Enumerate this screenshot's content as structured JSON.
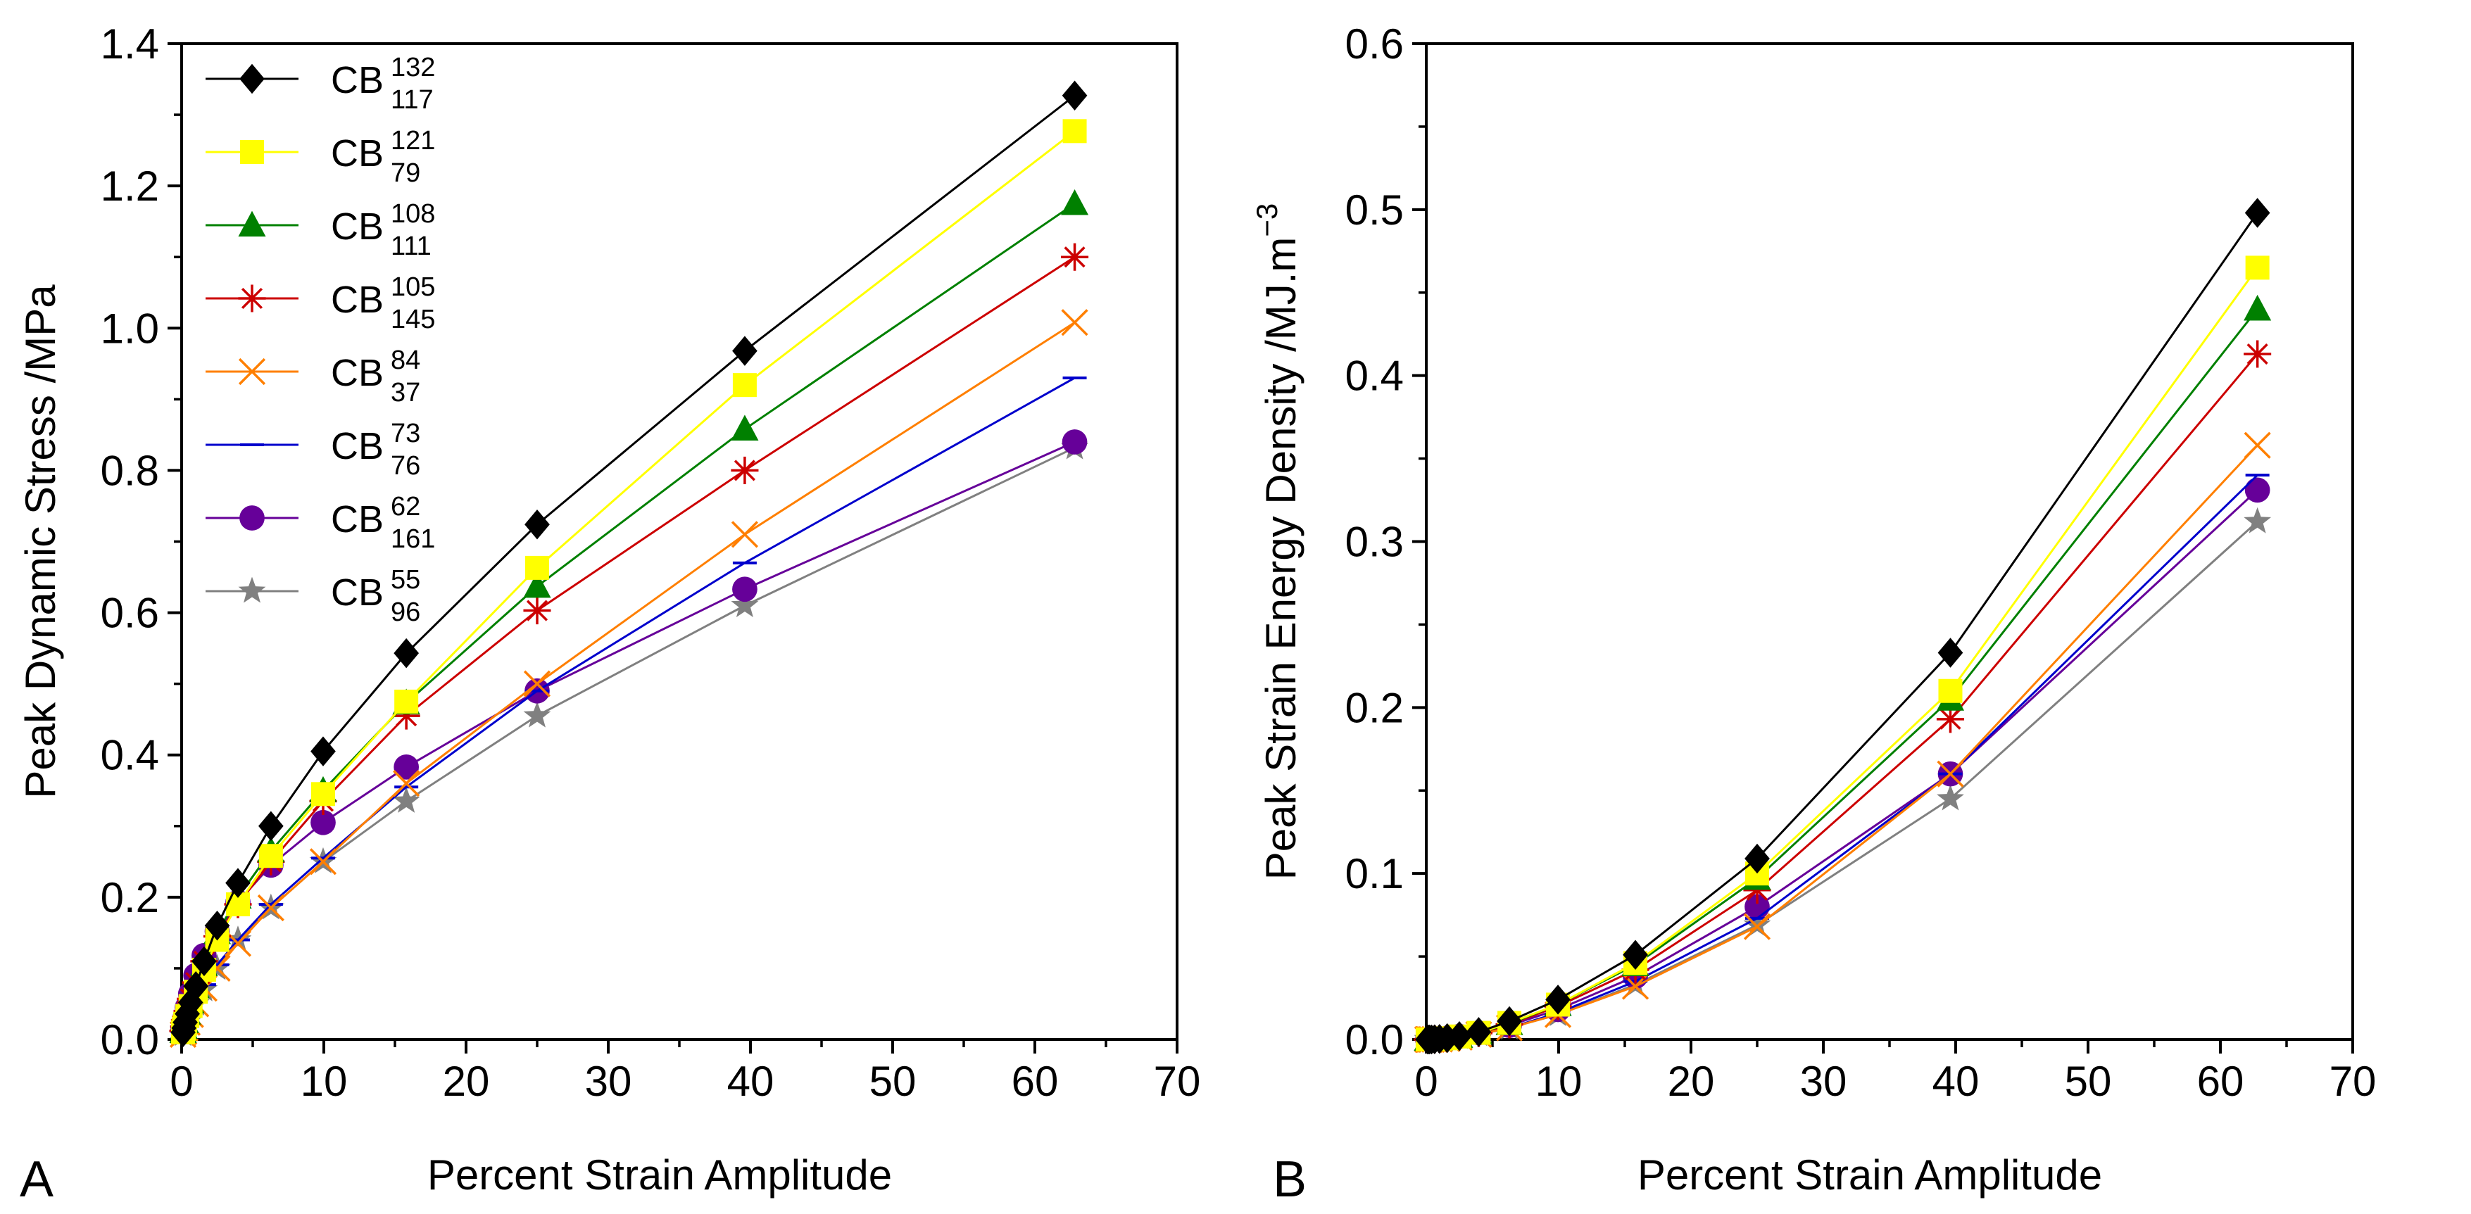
{
  "figure": {
    "legend_series": [
      {
        "base": "CB",
        "sup": "132",
        "sub": "117",
        "color": "#000000",
        "marker": "diamond"
      },
      {
        "base": "CB",
        "sup": "121",
        "sub": "79",
        "color": "#FFFF00",
        "marker": "square"
      },
      {
        "base": "CB",
        "sup": "108",
        "sub": "111",
        "color": "#008000",
        "marker": "triangle"
      },
      {
        "base": "CB",
        "sup": "105",
        "sub": "145",
        "color": "#CC0000",
        "marker": "asterisk"
      },
      {
        "base": "CB",
        "sup": "84",
        "sub": "37",
        "color": "#FF7F00",
        "marker": "cross"
      },
      {
        "base": "CB",
        "sup": "73",
        "sub": "76",
        "color": "#0000CC",
        "marker": "dash"
      },
      {
        "base": "CB",
        "sup": "62",
        "sub": "161",
        "color": "#660099",
        "marker": "circle"
      },
      {
        "base": "CB",
        "sup": "55",
        "sub": "96",
        "color": "#808080",
        "marker": "star"
      }
    ]
  },
  "chart_data": [
    {
      "type": "line",
      "panel_label": "A",
      "title": "",
      "xlabel": "Percent Strain Amplitude",
      "ylabel": "Peak Dynamic Stress /MPa",
      "xlim": [
        0,
        70
      ],
      "ylim": [
        0,
        1.4
      ],
      "xticks": [
        0,
        10,
        20,
        30,
        40,
        50,
        60,
        70
      ],
      "yticks": [
        0.0,
        0.2,
        0.4,
        0.6,
        0.8,
        1.0,
        1.2,
        1.4
      ],
      "ytick_decimals": 1,
      "legend_position": "top-left",
      "x": [
        0.1,
        0.16,
        0.25,
        0.4,
        0.63,
        1.0,
        1.58,
        2.5,
        3.96,
        6.28,
        9.95,
        15.8,
        25.0,
        39.6,
        62.8
      ],
      "series": [
        {
          "name": "CB 132/117",
          "values": [
            0.01,
            0.016,
            0.024,
            0.036,
            0.052,
            0.075,
            0.11,
            0.16,
            0.22,
            0.3,
            0.405,
            0.543,
            0.724,
            0.968,
            1.327
          ]
        },
        {
          "name": "CB 121/79",
          "values": [
            0.01,
            0.015,
            0.022,
            0.033,
            0.047,
            0.067,
            0.098,
            0.14,
            0.19,
            0.258,
            0.345,
            0.475,
            0.663,
            0.92,
            1.277
          ]
        },
        {
          "name": "CB 108/111",
          "values": [
            0.011,
            0.017,
            0.025,
            0.037,
            0.053,
            0.074,
            0.105,
            0.15,
            0.2,
            0.265,
            0.35,
            0.473,
            0.637,
            0.858,
            1.175
          ]
        },
        {
          "name": "CB 105/145",
          "values": [
            0.012,
            0.018,
            0.027,
            0.04,
            0.057,
            0.08,
            0.11,
            0.145,
            0.19,
            0.25,
            0.335,
            0.455,
            0.603,
            0.8,
            1.1
          ]
        },
        {
          "name": "CB 84/37",
          "values": [
            0.007,
            0.011,
            0.016,
            0.024,
            0.035,
            0.05,
            0.072,
            0.1,
            0.135,
            0.185,
            0.25,
            0.36,
            0.5,
            0.71,
            1.008
          ]
        },
        {
          "name": "CB 73/76",
          "values": [
            0.008,
            0.012,
            0.018,
            0.027,
            0.039,
            0.055,
            0.077,
            0.105,
            0.14,
            0.19,
            0.255,
            0.355,
            0.49,
            0.67,
            0.93
          ]
        },
        {
          "name": "CB 62/161",
          "values": [
            0.014,
            0.021,
            0.031,
            0.045,
            0.064,
            0.09,
            0.118,
            0.152,
            0.193,
            0.245,
            0.305,
            0.383,
            0.49,
            0.633,
            0.84
          ]
        },
        {
          "name": "CB 55/96",
          "values": [
            0.007,
            0.011,
            0.016,
            0.024,
            0.035,
            0.05,
            0.07,
            0.1,
            0.14,
            0.185,
            0.25,
            0.335,
            0.455,
            0.61,
            0.832
          ]
        }
      ]
    },
    {
      "type": "line",
      "panel_label": "B",
      "title": "",
      "xlabel": "Percent Strain Amplitude",
      "ylabel": "Peak Strain Energy Density /MJ.m",
      "ylabel_superscript": "−3",
      "xlim": [
        0,
        70
      ],
      "ylim": [
        0,
        0.6
      ],
      "xticks": [
        0,
        10,
        20,
        30,
        40,
        50,
        60,
        70
      ],
      "yticks": [
        0.0,
        0.1,
        0.2,
        0.3,
        0.4,
        0.5,
        0.6
      ],
      "ytick_decimals": 1,
      "legend_position": "none",
      "x": [
        0.1,
        0.16,
        0.25,
        0.4,
        0.63,
        1.0,
        1.58,
        2.5,
        3.96,
        6.28,
        9.95,
        15.8,
        25.0,
        39.6,
        62.8
      ],
      "series": [
        {
          "name": "CB 132/117",
          "values": [
            0.0,
            0.0,
            0.0,
            0.0,
            0.0001,
            0.0003,
            0.0008,
            0.002,
            0.0045,
            0.011,
            0.024,
            0.051,
            0.109,
            0.233,
            0.498
          ]
        },
        {
          "name": "CB 121/79",
          "values": [
            0.0,
            0.0,
            0.0,
            0.0,
            0.0001,
            0.0003,
            0.0007,
            0.0018,
            0.004,
            0.01,
            0.021,
            0.046,
            0.1,
            0.21,
            0.465
          ]
        },
        {
          "name": "CB 108/111",
          "values": [
            0.0,
            0.0,
            0.0,
            0.0,
            0.0001,
            0.0003,
            0.0007,
            0.0018,
            0.004,
            0.0095,
            0.021,
            0.045,
            0.097,
            0.205,
            0.44
          ]
        },
        {
          "name": "CB 105/145",
          "values": [
            0.0,
            0.0,
            0.0,
            0.0,
            0.0001,
            0.0003,
            0.0007,
            0.0018,
            0.0038,
            0.009,
            0.02,
            0.042,
            0.09,
            0.193,
            0.413
          ]
        },
        {
          "name": "CB 84/37",
          "values": [
            0.0,
            0.0,
            0.0,
            0.0,
            0.0001,
            0.0002,
            0.0005,
            0.0013,
            0.003,
            0.007,
            0.015,
            0.032,
            0.068,
            0.16,
            0.358
          ]
        },
        {
          "name": "CB 73/76",
          "values": [
            0.0,
            0.0,
            0.0,
            0.0,
            0.0001,
            0.0002,
            0.0005,
            0.0013,
            0.003,
            0.007,
            0.016,
            0.035,
            0.073,
            0.16,
            0.34
          ]
        },
        {
          "name": "CB 62/161",
          "values": [
            0.0,
            0.0,
            0.0,
            0.0001,
            0.0002,
            0.0004,
            0.0008,
            0.0019,
            0.004,
            0.0085,
            0.018,
            0.038,
            0.08,
            0.16,
            0.331
          ]
        },
        {
          "name": "CB 55/96",
          "values": [
            0.0,
            0.0,
            0.0,
            0.0,
            0.0001,
            0.0002,
            0.0005,
            0.0013,
            0.003,
            0.007,
            0.015,
            0.033,
            0.069,
            0.145,
            0.312
          ]
        }
      ]
    }
  ]
}
